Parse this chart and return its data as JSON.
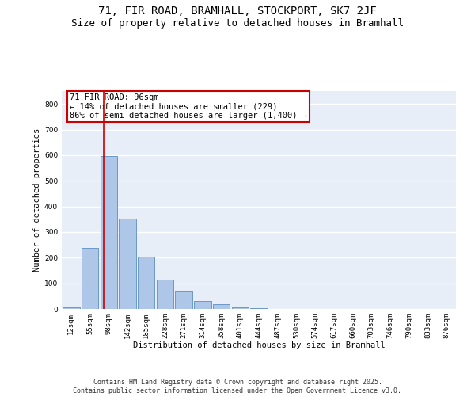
{
  "title_line1": "71, FIR ROAD, BRAMHALL, STOCKPORT, SK7 2JF",
  "title_line2": "Size of property relative to detached houses in Bramhall",
  "xlabel": "Distribution of detached houses by size in Bramhall",
  "ylabel": "Number of detached properties",
  "categories": [
    "12sqm",
    "55sqm",
    "98sqm",
    "142sqm",
    "185sqm",
    "228sqm",
    "271sqm",
    "314sqm",
    "358sqm",
    "401sqm",
    "444sqm",
    "487sqm",
    "530sqm",
    "574sqm",
    "617sqm",
    "660sqm",
    "703sqm",
    "746sqm",
    "790sqm",
    "833sqm",
    "876sqm"
  ],
  "values": [
    5,
    238,
    598,
    352,
    205,
    115,
    68,
    30,
    18,
    5,
    2,
    0,
    0,
    0,
    0,
    0,
    0,
    0,
    0,
    0,
    0
  ],
  "bar_color": "#aec6e8",
  "bar_edge_color": "#5a8fc0",
  "background_color": "#e8eef8",
  "grid_color": "#ffffff",
  "annotation_text": "71 FIR ROAD: 96sqm\n← 14% of detached houses are smaller (229)\n86% of semi-detached houses are larger (1,400) →",
  "annotation_box_color": "#ffffff",
  "annotation_box_edge_color": "#cc0000",
  "vline_x": 1.75,
  "vline_color": "#cc0000",
  "ylim": [
    0,
    850
  ],
  "yticks": [
    0,
    100,
    200,
    300,
    400,
    500,
    600,
    700,
    800
  ],
  "footer_text": "Contains HM Land Registry data © Crown copyright and database right 2025.\nContains public sector information licensed under the Open Government Licence v3.0.",
  "title_fontsize": 10,
  "subtitle_fontsize": 9,
  "axis_label_fontsize": 7.5,
  "tick_fontsize": 6.5,
  "annotation_fontsize": 7.5,
  "footer_fontsize": 6
}
